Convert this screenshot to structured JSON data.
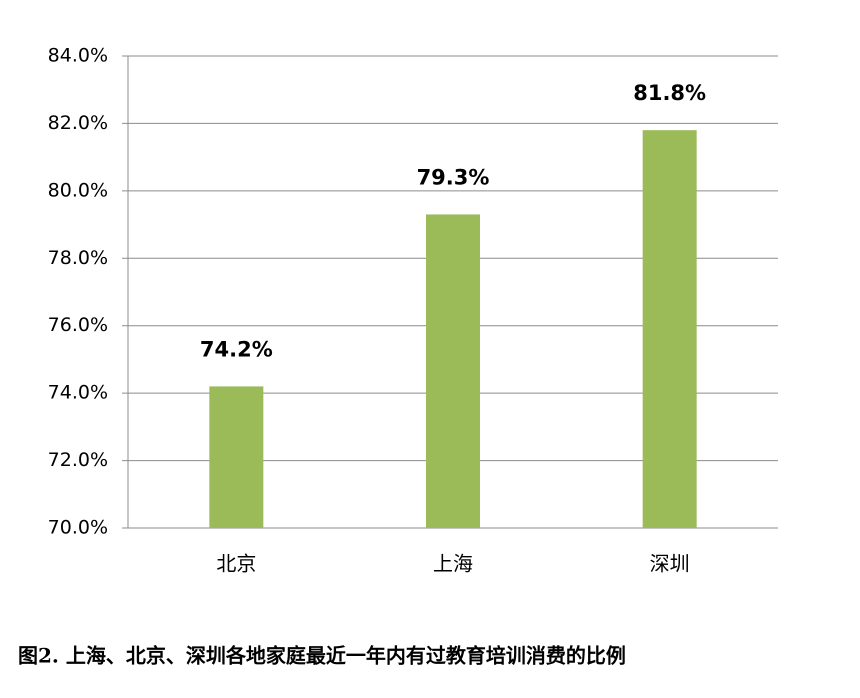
{
  "chart_data": {
    "type": "bar",
    "title": "图2. 上海、北京、深圳各地家庭最近一年内有过教育培训消费的比例",
    "categories": [
      "北京",
      "上海",
      "深圳"
    ],
    "values": [
      74.2,
      79.3,
      81.8
    ],
    "value_labels": [
      "74.2%",
      "79.3%",
      "81.8%"
    ],
    "color": "#9bbb59",
    "ylim": [
      70,
      84
    ],
    "yticks": [
      {
        "value": 70,
        "label": "70.0%"
      },
      {
        "value": 72,
        "label": "72.0%"
      },
      {
        "value": 74,
        "label": "74.0%"
      },
      {
        "value": 76,
        "label": "76.0%"
      },
      {
        "value": 78,
        "label": "78.0%"
      },
      {
        "value": 80,
        "label": "80.0%"
      },
      {
        "value": 82,
        "label": "82.0%"
      },
      {
        "value": 84,
        "label": "84.0%"
      }
    ],
    "grid": true
  }
}
